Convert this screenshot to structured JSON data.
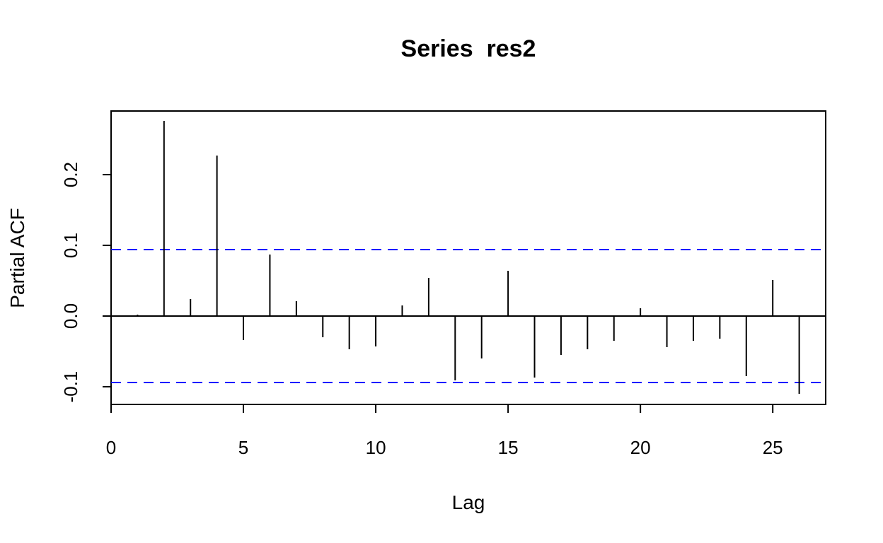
{
  "chart_data": {
    "type": "bar",
    "title": "Series  res2",
    "xlabel": "Lag",
    "ylabel": "Partial ACF",
    "xlim": [
      0,
      27
    ],
    "ylim": [
      -0.125,
      0.29
    ],
    "x_ticks": [
      0,
      5,
      10,
      15,
      20,
      25
    ],
    "y_ticks": [
      -0.1,
      0.0,
      0.1,
      0.2
    ],
    "x_tick_labels": [
      "0",
      "5",
      "10",
      "15",
      "20",
      "25"
    ],
    "y_tick_labels": [
      "-0.1",
      "0.0",
      "0.1",
      "0.2"
    ],
    "lags": [
      1,
      2,
      3,
      4,
      5,
      6,
      7,
      8,
      9,
      10,
      11,
      12,
      13,
      14,
      15,
      16,
      17,
      18,
      19,
      20,
      21,
      22,
      23,
      24,
      25,
      26
    ],
    "values": [
      0.002,
      0.276,
      0.024,
      0.227,
      -0.034,
      0.087,
      0.021,
      -0.03,
      -0.047,
      -0.043,
      0.015,
      0.054,
      -0.091,
      -0.06,
      0.064,
      -0.087,
      -0.055,
      -0.047,
      -0.035,
      0.011,
      -0.044,
      -0.035,
      -0.032,
      -0.085,
      0.051,
      -0.11
    ],
    "ci_bounds": [
      0.094,
      -0.094
    ],
    "colors": {
      "bars": "#000000",
      "ci_line": "#0000ff",
      "zero_line": "#000000"
    },
    "grid": false
  }
}
